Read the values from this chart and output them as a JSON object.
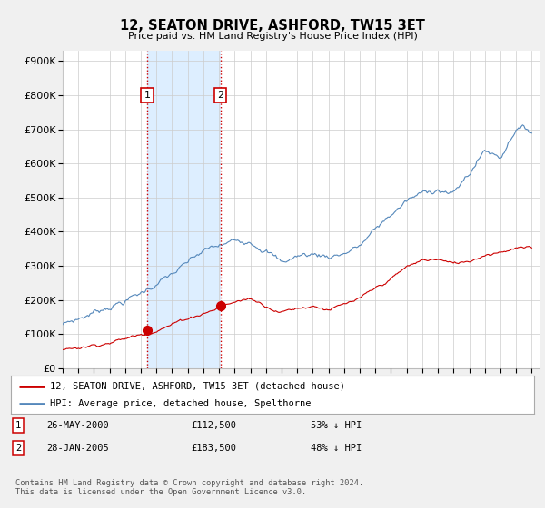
{
  "title": "12, SEATON DRIVE, ASHFORD, TW15 3ET",
  "subtitle": "Price paid vs. HM Land Registry's House Price Index (HPI)",
  "ytick_vals": [
    0,
    100000,
    200000,
    300000,
    400000,
    500000,
    600000,
    700000,
    800000,
    900000
  ],
  "ylim": [
    0,
    930000
  ],
  "xlim_start": 1995.0,
  "xlim_end": 2025.5,
  "transaction1": {
    "date_num": 2000.41,
    "price": 112500,
    "label": "1"
  },
  "transaction2": {
    "date_num": 2005.08,
    "price": 183500,
    "label": "2"
  },
  "legend_red": "12, SEATON DRIVE, ASHFORD, TW15 3ET (detached house)",
  "legend_blue": "HPI: Average price, detached house, Spelthorne",
  "footnote": "Contains HM Land Registry data © Crown copyright and database right 2024.\nThis data is licensed under the Open Government Licence v3.0.",
  "bg_color": "#f0f0f0",
  "plot_bg_color": "#ffffff",
  "red_line_color": "#cc0000",
  "blue_line_color": "#5588bb",
  "fill_color": "#ddeeff",
  "vline_color": "#cc0000",
  "grid_color": "#cccccc",
  "xticks": [
    1995,
    1996,
    1997,
    1998,
    1999,
    2000,
    2001,
    2002,
    2003,
    2004,
    2005,
    2006,
    2007,
    2008,
    2009,
    2010,
    2011,
    2012,
    2013,
    2014,
    2015,
    2016,
    2017,
    2018,
    2019,
    2020,
    2021,
    2022,
    2023,
    2024,
    2025
  ],
  "hpi_key_years": [
    1995,
    1996,
    1997,
    1998,
    1999,
    2000,
    2001,
    2002,
    2003,
    2004,
    2005,
    2006,
    2007,
    2008,
    2009,
    2010,
    2011,
    2012,
    2013,
    2014,
    2015,
    2016,
    2017,
    2018,
    2019,
    2020,
    2021,
    2022,
    2023,
    2024,
    2025
  ],
  "hpi_key_vals": [
    128000,
    145000,
    165000,
    185000,
    200000,
    220000,
    250000,
    275000,
    305000,
    340000,
    355000,
    370000,
    380000,
    355000,
    310000,
    330000,
    335000,
    330000,
    340000,
    360000,
    405000,
    450000,
    490000,
    510000,
    530000,
    510000,
    570000,
    640000,
    620000,
    710000,
    695000
  ],
  "red_key_years": [
    1995,
    1996,
    1997,
    1998,
    1999,
    2000,
    2001,
    2002,
    2003,
    2004,
    2005,
    2006,
    2007,
    2008,
    2009,
    2010,
    2011,
    2012,
    2013,
    2014,
    2015,
    2016,
    2017,
    2018,
    2019,
    2020,
    2021,
    2022,
    2023,
    2024,
    2025
  ],
  "red_key_vals": [
    55000,
    62000,
    70000,
    78000,
    87000,
    100000,
    115000,
    130000,
    148000,
    163000,
    178000,
    195000,
    205000,
    185000,
    168000,
    178000,
    185000,
    175000,
    185000,
    200000,
    230000,
    260000,
    295000,
    315000,
    320000,
    305000,
    315000,
    335000,
    345000,
    355000,
    350000
  ]
}
